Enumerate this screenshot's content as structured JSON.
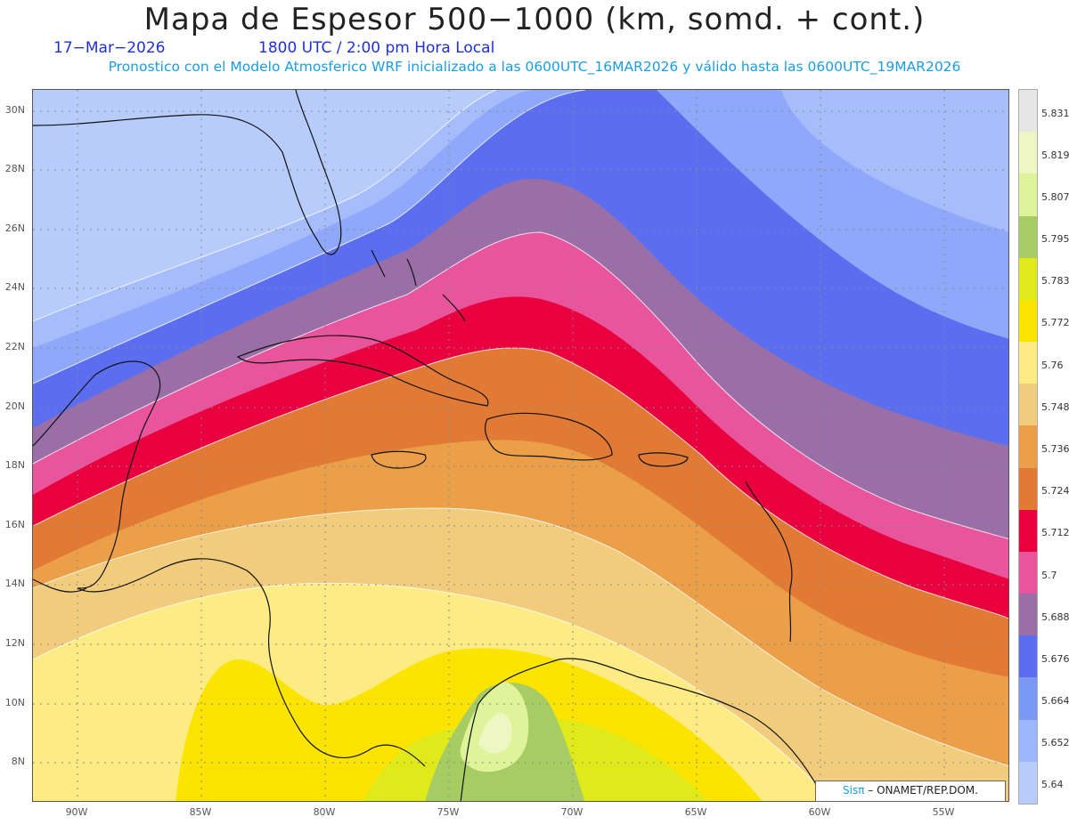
{
  "title": "Mapa de Espesor 500−1000 (km, somd. + cont.)",
  "date": "17−Mar−2026",
  "time": "1800 UTC / 2:00 pm Hora Local",
  "forecast": "Pronostico con el Modelo Atmosferico WRF inicializado a las 0600UTC_16MAR2026 y válido hasta las  0600UTC_19MAR2026",
  "credit_brand": "Sisπ",
  "credit_text": "– ONAMET/REP.DOM.",
  "lat_labels": [
    "30N",
    "28N",
    "26N",
    "24N",
    "22N",
    "20N",
    "18N",
    "16N",
    "14N",
    "12N",
    "10N",
    "8N"
  ],
  "lon_labels": [
    "90W",
    "85W",
    "80W",
    "75W",
    "70W",
    "65W",
    "60W",
    "55W"
  ],
  "colorbar": {
    "levels": [
      "5.831",
      "5.819",
      "5.807",
      "5.795",
      "5.783",
      "5.772",
      "5.76",
      "5.748",
      "5.736",
      "5.724",
      "5.712",
      "5.7",
      "5.688",
      "5.676",
      "5.664",
      "5.652",
      "5.64"
    ],
    "colors": [
      "#e6e6e6",
      "#eef6c2",
      "#dff39a",
      "#a8cc64",
      "#e0ea1a",
      "#fbe400",
      "#fdeb84",
      "#f0cc7c",
      "#ea9f48",
      "#e07a34",
      "#e8003f",
      "#e8559c",
      "#9a6ea7",
      "#5c6ef0",
      "#7c98f5",
      "#9cb8fb",
      "#b8ccfb"
    ]
  }
}
